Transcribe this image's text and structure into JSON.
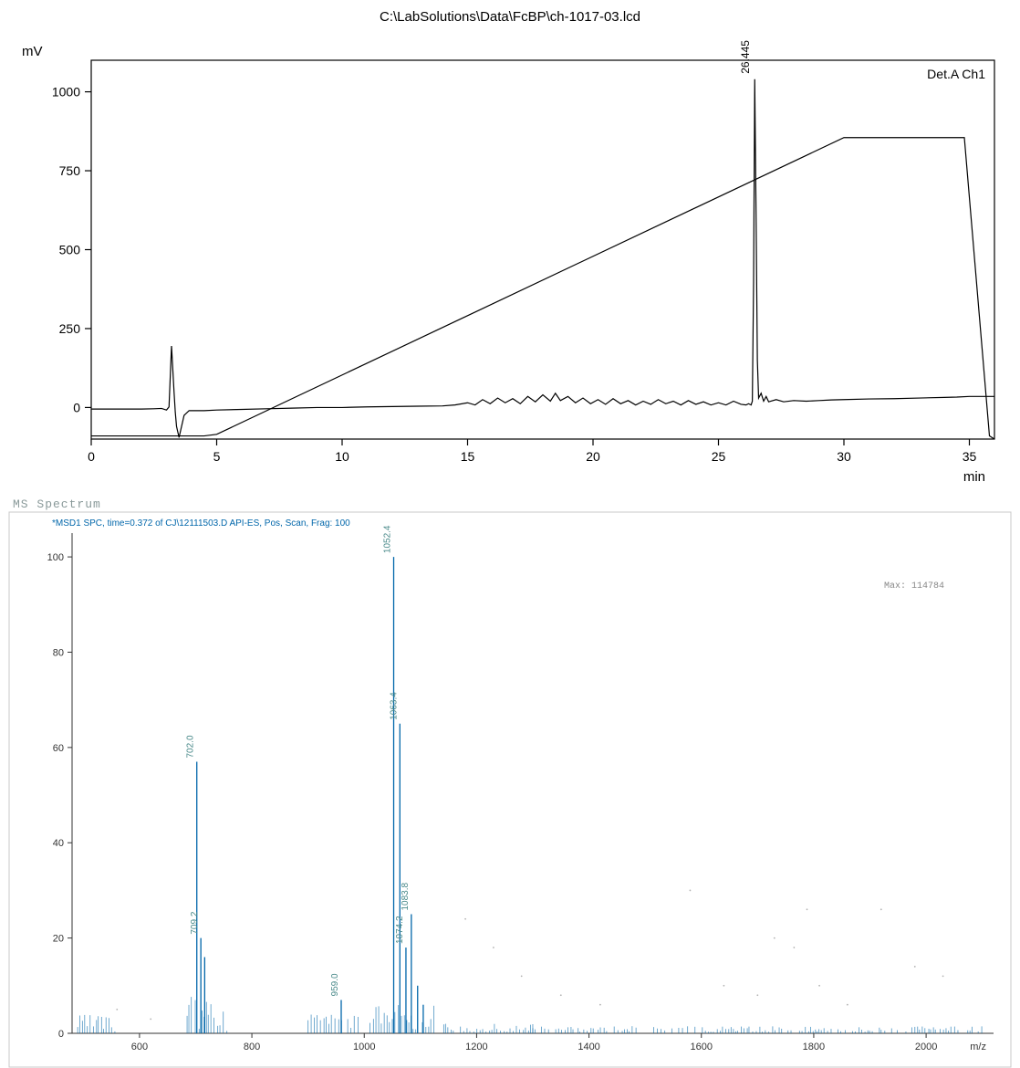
{
  "chromatogram": {
    "title": "C:\\LabSolutions\\Data\\FcBP\\ch-1017-03.lcd",
    "y_axis_label": "mV",
    "x_axis_label": "min",
    "annotation_top_right": "Det.A Ch1",
    "peak_label": "26.445",
    "xlim": [
      0,
      36
    ],
    "ylim": [
      -100,
      1100
    ],
    "xticks": [
      0,
      5,
      10,
      15,
      20,
      25,
      30,
      35
    ],
    "yticks": [
      0,
      250,
      500,
      750,
      1000
    ],
    "line_color": "#000000",
    "axis_color": "#000000",
    "tick_font_size": 14,
    "label_font_size": 15,
    "title_font_size": 15,
    "peak_label_font_size": 12,
    "annotation_font_size": 14,
    "background_color": "#ffffff",
    "signal_points": [
      [
        0,
        -5
      ],
      [
        1,
        -5
      ],
      [
        1.5,
        -5
      ],
      [
        2,
        -5
      ],
      [
        2.5,
        -4
      ],
      [
        2.8,
        -3
      ],
      [
        3.0,
        -8
      ],
      [
        3.1,
        2
      ],
      [
        3.2,
        195
      ],
      [
        3.3,
        50
      ],
      [
        3.35,
        -15
      ],
      [
        3.4,
        -60
      ],
      [
        3.5,
        -95
      ],
      [
        3.7,
        -25
      ],
      [
        3.9,
        -10
      ],
      [
        4.2,
        -10
      ],
      [
        4.5,
        -10
      ],
      [
        5,
        -8
      ],
      [
        6,
        -6
      ],
      [
        7,
        -4
      ],
      [
        8,
        -2
      ],
      [
        9,
        0
      ],
      [
        10,
        0
      ],
      [
        11,
        2
      ],
      [
        12,
        3
      ],
      [
        13,
        4
      ],
      [
        14,
        5
      ],
      [
        14.5,
        8
      ],
      [
        15,
        15
      ],
      [
        15.3,
        8
      ],
      [
        15.6,
        25
      ],
      [
        15.9,
        12
      ],
      [
        16.2,
        30
      ],
      [
        16.5,
        15
      ],
      [
        16.8,
        28
      ],
      [
        17.1,
        12
      ],
      [
        17.4,
        35
      ],
      [
        17.7,
        18
      ],
      [
        18,
        40
      ],
      [
        18.3,
        20
      ],
      [
        18.5,
        45
      ],
      [
        18.7,
        22
      ],
      [
        19,
        35
      ],
      [
        19.3,
        15
      ],
      [
        19.6,
        30
      ],
      [
        19.9,
        12
      ],
      [
        20.2,
        25
      ],
      [
        20.5,
        10
      ],
      [
        20.8,
        28
      ],
      [
        21.1,
        12
      ],
      [
        21.4,
        22
      ],
      [
        21.7,
        8
      ],
      [
        22,
        20
      ],
      [
        22.3,
        10
      ],
      [
        22.6,
        25
      ],
      [
        22.9,
        12
      ],
      [
        23.2,
        20
      ],
      [
        23.5,
        8
      ],
      [
        23.8,
        22
      ],
      [
        24.1,
        10
      ],
      [
        24.4,
        18
      ],
      [
        24.7,
        8
      ],
      [
        25,
        15
      ],
      [
        25.3,
        8
      ],
      [
        25.6,
        20
      ],
      [
        25.9,
        10
      ],
      [
        26.1,
        8
      ],
      [
        26.2,
        12
      ],
      [
        26.3,
        8
      ],
      [
        26.35,
        20
      ],
      [
        26.4,
        400
      ],
      [
        26.445,
        1040
      ],
      [
        26.5,
        600
      ],
      [
        26.55,
        150
      ],
      [
        26.6,
        30
      ],
      [
        26.7,
        45
      ],
      [
        26.8,
        20
      ],
      [
        26.9,
        35
      ],
      [
        27,
        18
      ],
      [
        27.3,
        25
      ],
      [
        27.6,
        18
      ],
      [
        28,
        22
      ],
      [
        28.5,
        20
      ],
      [
        29,
        22
      ],
      [
        29.5,
        24
      ],
      [
        30,
        25
      ],
      [
        31,
        27
      ],
      [
        32,
        28
      ],
      [
        33,
        30
      ],
      [
        34,
        32
      ],
      [
        34.5,
        33
      ],
      [
        35,
        35
      ],
      [
        35.5,
        35
      ],
      [
        36,
        35
      ]
    ],
    "gradient_points": [
      [
        0,
        -90
      ],
      [
        4.5,
        -90
      ],
      [
        5,
        -85
      ],
      [
        30,
        855
      ],
      [
        34.8,
        855
      ],
      [
        35.8,
        -90
      ],
      [
        36,
        -100
      ]
    ]
  },
  "ms_spectrum": {
    "section_title": "MS Spectrum",
    "header_text": "*MSD1 SPC, time=0.372 of CJ\\12111503.D    API-ES, Pos, Scan, Frag: 100",
    "max_label": "Max: 114784",
    "xlim": [
      480,
      2120
    ],
    "ylim": [
      0,
      105
    ],
    "xticks": [
      600,
      800,
      1000,
      1200,
      1400,
      1600,
      1800,
      2000
    ],
    "yticks": [
      0,
      20,
      40,
      60,
      80,
      100
    ],
    "x_axis_label": "m/z",
    "line_color": "#0066aa",
    "noise_color": "#0066aa",
    "label_color": "#4a8a8a",
    "axis_color": "#333333",
    "header_color": "#0066aa",
    "header_font_size": 10,
    "tick_font_size": 11,
    "peak_label_font_size": 10,
    "max_label_font_size": 10,
    "max_label_color": "#888888",
    "background_color": "#ffffff",
    "border_color": "#c8c8c8",
    "peaks": [
      {
        "mz": 702.0,
        "intensity": 57,
        "label": "702.0"
      },
      {
        "mz": 709.2,
        "intensity": 20,
        "label": "709.2"
      },
      {
        "mz": 716,
        "intensity": 16,
        "label": ""
      },
      {
        "mz": 959.0,
        "intensity": 7,
        "label": "959.0"
      },
      {
        "mz": 1052.4,
        "intensity": 100,
        "label": "1052.4"
      },
      {
        "mz": 1063.4,
        "intensity": 65,
        "label": "1063.4"
      },
      {
        "mz": 1074.2,
        "intensity": 18,
        "label": "1074.2"
      },
      {
        "mz": 1083.8,
        "intensity": 25,
        "label": "1083.8"
      },
      {
        "mz": 1095,
        "intensity": 10,
        "label": ""
      },
      {
        "mz": 1105,
        "intensity": 6,
        "label": ""
      }
    ],
    "noise_ranges": [
      {
        "start": 490,
        "end": 560,
        "max": 4
      },
      {
        "start": 680,
        "end": 760,
        "max": 8
      },
      {
        "start": 900,
        "end": 990,
        "max": 4
      },
      {
        "start": 1010,
        "end": 1130,
        "max": 6
      },
      {
        "start": 1130,
        "end": 1300,
        "max": 2
      },
      {
        "start": 1300,
        "end": 2100,
        "max": 1.5
      }
    ],
    "speckles": [
      [
        1180,
        24
      ],
      [
        1230,
        18
      ],
      [
        1280,
        12
      ],
      [
        1350,
        8
      ],
      [
        1420,
        6
      ],
      [
        1580,
        30
      ],
      [
        1640,
        10
      ],
      [
        1700,
        8
      ],
      [
        1730,
        20
      ],
      [
        1765,
        18
      ],
      [
        1788,
        26
      ],
      [
        1810,
        10
      ],
      [
        1860,
        6
      ],
      [
        1920,
        26
      ],
      [
        1980,
        14
      ],
      [
        2030,
        12
      ],
      [
        560,
        5
      ],
      [
        620,
        3
      ]
    ]
  }
}
